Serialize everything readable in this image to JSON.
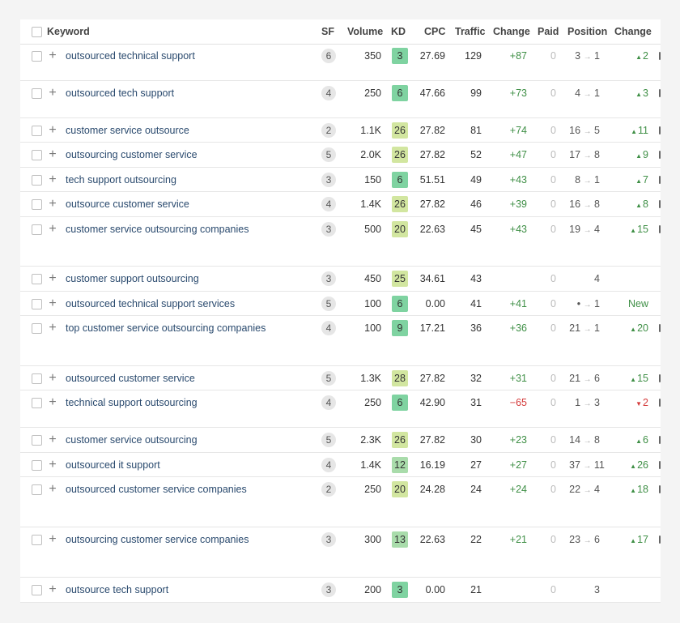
{
  "header": {
    "keyword": "Keyword",
    "sf": "SF",
    "volume": "Volume",
    "kd": "KD",
    "cpc": "CPC",
    "traffic": "Traffic",
    "change": "Change",
    "paid": "Paid",
    "position": "Position",
    "change2": "Change"
  },
  "colors": {
    "kd_low": "#7fd3a1",
    "kd_easy": "#a9dcab",
    "kd_mid": "#d2e6a0",
    "positive": "#3f8f46",
    "negative": "#d43a3a",
    "link": "#2a4a6e"
  },
  "rows": [
    {
      "keyword": "outsourced technical support",
      "sf": "6",
      "volume": "350",
      "kd": "3",
      "cpc": "27.69",
      "traffic": "129",
      "change": "+87",
      "paid": "0",
      "pos_from": "3",
      "pos_to": "1",
      "pos_change": "2",
      "dir": "up"
    },
    {
      "keyword": "outsourced tech support",
      "sf": "4",
      "volume": "250",
      "kd": "6",
      "cpc": "47.66",
      "traffic": "99",
      "change": "+73",
      "paid": "0",
      "pos_from": "4",
      "pos_to": "1",
      "pos_change": "3",
      "dir": "up"
    },
    {
      "keyword": "customer service outsource",
      "sf": "2",
      "volume": "1.1K",
      "kd": "26",
      "cpc": "27.82",
      "traffic": "81",
      "change": "+74",
      "paid": "0",
      "pos_from": "16",
      "pos_to": "5",
      "pos_change": "11",
      "dir": "up"
    },
    {
      "keyword": "outsourcing customer service",
      "sf": "5",
      "volume": "2.0K",
      "kd": "26",
      "cpc": "27.82",
      "traffic": "52",
      "change": "+47",
      "paid": "0",
      "pos_from": "17",
      "pos_to": "8",
      "pos_change": "9",
      "dir": "up"
    },
    {
      "keyword": "tech support outsourcing",
      "sf": "3",
      "volume": "150",
      "kd": "6",
      "cpc": "51.51",
      "traffic": "49",
      "change": "+43",
      "paid": "0",
      "pos_from": "8",
      "pos_to": "1",
      "pos_change": "7",
      "dir": "up"
    },
    {
      "keyword": "outsource customer service",
      "sf": "4",
      "volume": "1.4K",
      "kd": "26",
      "cpc": "27.82",
      "traffic": "46",
      "change": "+39",
      "paid": "0",
      "pos_from": "16",
      "pos_to": "8",
      "pos_change": "8",
      "dir": "up"
    },
    {
      "keyword": "customer service outsourcing companies",
      "sf": "3",
      "volume": "500",
      "kd": "20",
      "cpc": "22.63",
      "traffic": "45",
      "change": "+43",
      "paid": "0",
      "pos_from": "19",
      "pos_to": "4",
      "pos_change": "15",
      "dir": "up"
    },
    {
      "keyword": "customer support outsourcing",
      "sf": "3",
      "volume": "450",
      "kd": "25",
      "cpc": "34.61",
      "traffic": "43",
      "change": "",
      "paid": "0",
      "pos_from": "",
      "pos_to": "4",
      "pos_change": "",
      "dir": "none"
    },
    {
      "keyword": "outsourced technical support services",
      "sf": "5",
      "volume": "100",
      "kd": "6",
      "cpc": "0.00",
      "traffic": "41",
      "change": "+41",
      "paid": "0",
      "pos_from": "•",
      "pos_to": "1",
      "pos_change": "New",
      "dir": "new"
    },
    {
      "keyword": "top customer service outsourcing companies",
      "sf": "4",
      "volume": "100",
      "kd": "9",
      "cpc": "17.21",
      "traffic": "36",
      "change": "+36",
      "paid": "0",
      "pos_from": "21",
      "pos_to": "1",
      "pos_change": "20",
      "dir": "up"
    },
    {
      "keyword": "outsourced customer service",
      "sf": "5",
      "volume": "1.3K",
      "kd": "28",
      "cpc": "27.82",
      "traffic": "32",
      "change": "+31",
      "paid": "0",
      "pos_from": "21",
      "pos_to": "6",
      "pos_change": "15",
      "dir": "up"
    },
    {
      "keyword": "technical support outsourcing",
      "sf": "4",
      "volume": "250",
      "kd": "6",
      "cpc": "42.90",
      "traffic": "31",
      "change": "−65",
      "paid": "0",
      "pos_from": "1",
      "pos_to": "3",
      "pos_change": "2",
      "dir": "down"
    },
    {
      "keyword": "customer service outsourcing",
      "sf": "5",
      "volume": "2.3K",
      "kd": "26",
      "cpc": "27.82",
      "traffic": "30",
      "change": "+23",
      "paid": "0",
      "pos_from": "14",
      "pos_to": "8",
      "pos_change": "6",
      "dir": "up"
    },
    {
      "keyword": "outsourced it support",
      "sf": "4",
      "volume": "1.4K",
      "kd": "12",
      "cpc": "16.19",
      "traffic": "27",
      "change": "+27",
      "paid": "0",
      "pos_from": "37",
      "pos_to": "11",
      "pos_change": "26",
      "dir": "up"
    },
    {
      "keyword": "outsourced customer service companies",
      "sf": "2",
      "volume": "250",
      "kd": "20",
      "cpc": "24.28",
      "traffic": "24",
      "change": "+24",
      "paid": "0",
      "pos_from": "22",
      "pos_to": "4",
      "pos_change": "18",
      "dir": "up"
    },
    {
      "keyword": "outsourcing customer service companies",
      "sf": "3",
      "volume": "300",
      "kd": "13",
      "cpc": "22.63",
      "traffic": "22",
      "change": "+21",
      "paid": "0",
      "pos_from": "23",
      "pos_to": "6",
      "pos_change": "17",
      "dir": "up"
    },
    {
      "keyword": "outsource tech support",
      "sf": "3",
      "volume": "200",
      "kd": "3",
      "cpc": "0.00",
      "traffic": "21",
      "change": "",
      "paid": "0",
      "pos_from": "",
      "pos_to": "3",
      "pos_change": "",
      "dir": "none"
    }
  ]
}
